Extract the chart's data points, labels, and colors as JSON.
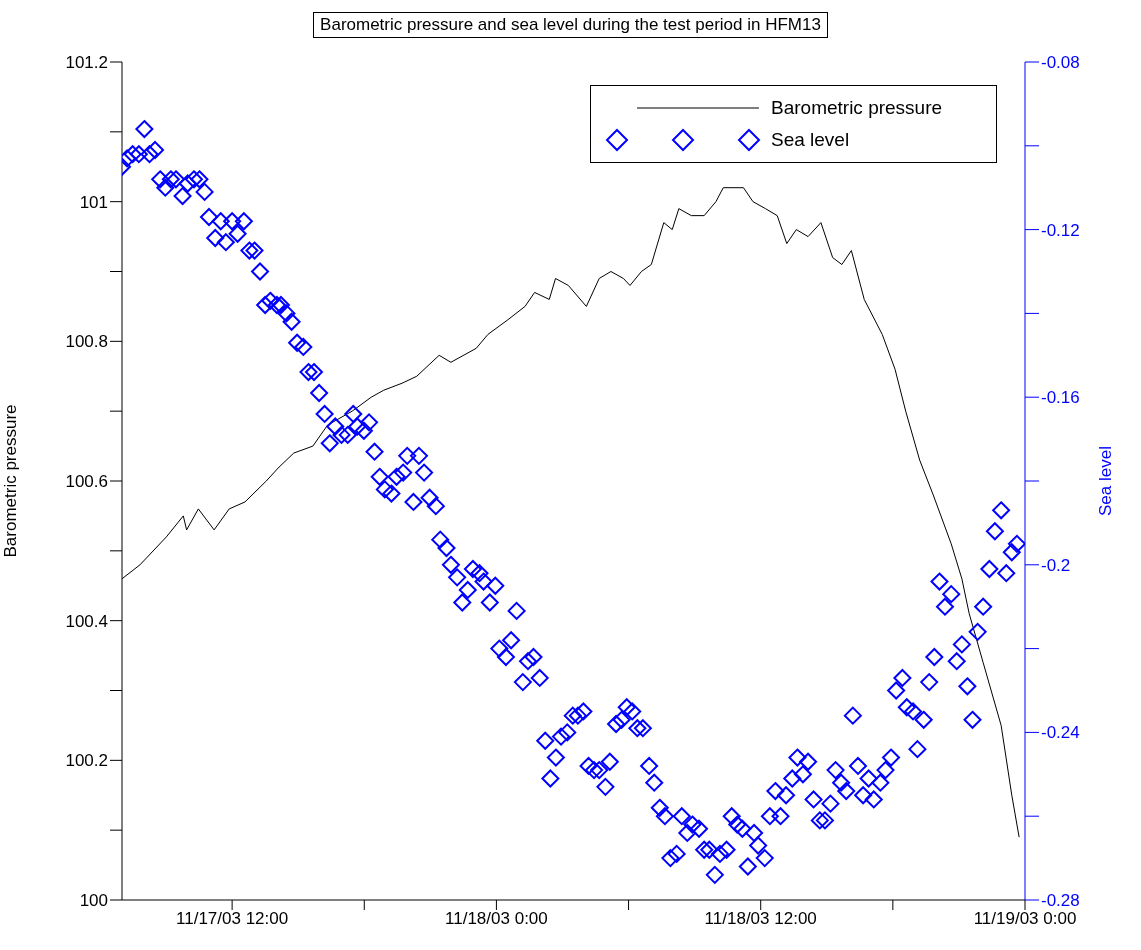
{
  "chart_data": {
    "type": "line",
    "title": "Barometric pressure and sea level during the test period in HFM13",
    "ylabel": "Barometric pressure",
    "y2label": "Sea level",
    "legend": "top right",
    "grid": false,
    "xlim": [
      "--11-17T07:00",
      "--11-19T00:00"
    ],
    "xticks": [
      {
        "value": "--11-17T12:00",
        "label": "11/17/03 12:00"
      },
      {
        "value": "--11-17T18:00",
        "label": null
      },
      {
        "value": "--11-18T00:00",
        "label": "11/18/03 0:00"
      },
      {
        "value": "--11-18T06:00",
        "label": null
      },
      {
        "value": "--11-18T12:00",
        "label": "11/18/03 12:00"
      },
      {
        "value": "--11-18T18:00",
        "label": null
      },
      {
        "value": "--11-19T00:00",
        "label": "11/19/03 0:00"
      }
    ],
    "ylim": [
      100,
      101.2
    ],
    "yticks": [
      100,
      {
        "value": 100.1,
        "label": null
      },
      100.2,
      {
        "value": 100.3,
        "label": null
      },
      100.4,
      {
        "value": 100.5,
        "label": null
      },
      100.6,
      {
        "value": 100.7,
        "label": null
      },
      100.8,
      {
        "value": 100.9,
        "label": null
      },
      101,
      {
        "value": 101.1,
        "label": null
      },
      101.2
    ],
    "y2lim": [
      -0.28,
      -0.08
    ],
    "y2ticks": [
      -0.28,
      {
        "value": -0.26,
        "label": null
      },
      -0.24,
      {
        "value": -0.22,
        "label": null
      },
      -0.2,
      {
        "value": -0.18,
        "label": null
      },
      -0.16,
      {
        "value": -0.14,
        "label": null
      },
      -0.12,
      {
        "value": -0.1,
        "label": null
      },
      -0.08
    ],
    "series": [
      {
        "name": "Barometric pressure",
        "type": "line",
        "color": "#000000",
        "marker": "none",
        "x": [
          "--11-17T07:00",
          "--11-17T07:49",
          "--11-17T09:01",
          "--11-17T09:47",
          "--11-17T09:56",
          "--11-17T10:28",
          "--11-17T11:11",
          "--11-17T11:52",
          "--11-17T12:35",
          "--11-17T13:33",
          "--11-17T14:08",
          "--11-17T14:48",
          "--11-17T15:40",
          "--11-17T16:20",
          "--11-17T17:27",
          "--11-17T18:19",
          "--11-17T18:53",
          "--11-17T19:43",
          "--11-17T20:23",
          "--11-17T21:24",
          "--11-17T21:56",
          "--11-17T23:05",
          "--11-17T23:37",
          "--11-18T00:29",
          "--11-18T01:18",
          "--11-18T01:44",
          "--11-18T02:24",
          "--11-18T02:41",
          "--11-18T03:16",
          "--11-18T04:05",
          "--11-18T04:40",
          "--11-18T05:12",
          "--11-18T05:46",
          "--11-18T06:04",
          "--11-18T06:35",
          "--11-18T07:02",
          "--11-18T07:36",
          "--11-18T07:59",
          "--11-18T08:17",
          "--11-18T08:51",
          "--11-18T09:26",
          "--11-18T09:58",
          "--11-18T10:18",
          "--11-18T10:50",
          "--11-18T11:13",
          "--11-18T11:39",
          "--11-18T12:13",
          "--11-18T12:45",
          "--11-18T13:11",
          "--11-18T13:37",
          "--11-18T14:09",
          "--11-18T14:44",
          "--11-18T15:16",
          "--11-18T15:41",
          "--11-18T16:07",
          "--11-18T16:42",
          "--11-18T17:31",
          "--11-18T18:06",
          "--11-18T18:35",
          "--11-18T19:13",
          "--11-18T19:50",
          "--11-18T20:39",
          "--11-18T21:08",
          "--11-18T21:28",
          "--11-18T22:06",
          "--11-18T22:55",
          "--11-18T23:24",
          "--11-18T23:44"
        ],
        "values": [
          100.46,
          100.48,
          100.52,
          100.55,
          100.53,
          100.56,
          100.53,
          100.56,
          100.57,
          100.6,
          100.62,
          100.64,
          100.65,
          100.68,
          100.7,
          100.72,
          100.73,
          100.74,
          100.75,
          100.78,
          100.77,
          100.79,
          100.81,
          100.83,
          100.85,
          100.87,
          100.86,
          100.89,
          100.88,
          100.85,
          100.89,
          100.9,
          100.89,
          100.88,
          100.9,
          100.91,
          100.97,
          100.96,
          100.99,
          100.98,
          100.98,
          101.0,
          101.02,
          101.02,
          101.02,
          101.0,
          100.99,
          100.98,
          100.94,
          100.96,
          100.95,
          100.97,
          100.92,
          100.91,
          100.93,
          100.86,
          100.81,
          100.76,
          100.7,
          100.63,
          100.58,
          100.51,
          100.46,
          100.41,
          100.34,
          100.25,
          100.15,
          100.09
        ]
      },
      {
        "name": "Sea level",
        "type": "scatter",
        "axis": "y2",
        "color": "#0000ff",
        "marker": "diamond",
        "x": [
          "--11-17T07:00",
          "--11-17T07:14",
          "--11-17T07:29",
          "--11-17T07:46",
          "--11-17T08:01",
          "--11-17T08:15",
          "--11-17T08:30",
          "--11-17T08:44",
          "--11-17T08:58",
          "--11-17T09:13",
          "--11-17T09:27",
          "--11-17T09:45",
          "--11-17T09:59",
          "--11-17T10:16",
          "--11-17T10:31",
          "--11-17T10:45",
          "--11-17T10:57",
          "--11-17T11:14",
          "--11-17T11:29",
          "--11-17T11:43",
          "--11-17T12:00",
          "--11-17T12:15",
          "--11-17T12:32",
          "--11-17T12:47",
          "--11-17T13:01",
          "--11-17T13:16",
          "--11-17T13:30",
          "--11-17T13:44",
          "--11-17T14:02",
          "--11-17T14:13",
          "--11-17T14:28",
          "--11-17T14:42",
          "--11-17T14:57",
          "--11-17T15:14",
          "--11-17T15:28",
          "--11-17T15:43",
          "--11-17T15:57",
          "--11-17T16:12",
          "--11-17T16:26",
          "--11-17T16:41",
          "--11-17T16:58",
          "--11-17T17:15",
          "--11-17T17:30",
          "--11-17T17:41",
          "--11-17T17:59",
          "--11-17T18:13",
          "--11-17T18:28",
          "--11-17T18:42",
          "--11-17T18:56",
          "--11-17T19:14",
          "--11-17T19:28",
          "--11-17T19:46",
          "--11-17T19:57",
          "--11-17T20:14",
          "--11-17T20:29",
          "--11-17T20:43",
          "--11-17T20:58",
          "--11-17T21:15",
          "--11-17T21:27",
          "--11-17T21:44",
          "--11-17T21:56",
          "--11-17T22:13",
          "--11-17T22:27",
          "--11-17T22:42",
          "--11-17T22:56",
          "--11-17T23:14",
          "--11-17T23:25",
          "--11-17T23:42",
          "--11-17T23:57",
          "--11-18T00:08",
          "--11-18T00:26",
          "--11-18T00:40",
          "--11-18T00:55",
          "--11-18T01:12",
          "--11-18T01:26",
          "--11-18T01:41",
          "--11-18T01:58",
          "--11-18T02:13",
          "--11-18T02:27",
          "--11-18T02:42",
          "--11-18T02:56",
          "--11-18T03:13",
          "--11-18T03:28",
          "--11-18T03:42",
          "--11-18T03:57",
          "--11-18T04:11",
          "--11-18T04:26",
          "--11-18T04:40",
          "--11-18T04:57",
          "--11-18T05:09",
          "--11-18T05:26",
          "--11-18T05:41",
          "--11-18T05:55",
          "--11-18T06:10",
          "--11-18T06:24",
          "--11-18T06:39",
          "--11-18T06:56",
          "--11-18T07:10",
          "--11-18T07:25",
          "--11-18T07:39",
          "--11-18T07:54",
          "--11-18T08:11",
          "--11-18T08:25",
          "--11-18T08:40",
          "--11-18T08:54",
          "--11-18T09:12",
          "--11-18T09:26",
          "--11-18T09:40",
          "--11-18T09:55",
          "--11-18T10:09",
          "--11-18T10:27",
          "--11-18T10:41",
          "--11-18T10:56",
          "--11-18T11:10",
          "--11-18T11:25",
          "--11-18T11:42",
          "--11-18T11:53",
          "--11-18T12:11",
          "--11-18T12:25",
          "--11-18T12:40",
          "--11-18T12:54",
          "--11-18T13:09",
          "--11-18T13:26",
          "--11-18T13:40",
          "--11-18T13:55",
          "--11-18T14:09",
          "--11-18T14:24",
          "--11-18T14:41",
          "--11-18T14:55",
          "--11-18T15:10",
          "--11-18T15:24",
          "--11-18T15:39",
          "--11-18T15:53",
          "--11-18T16:11",
          "--11-18T16:25",
          "--11-18T16:39",
          "--11-18T16:54",
          "--11-18T17:08",
          "--11-18T17:26",
          "--11-18T17:40",
          "--11-18T17:55",
          "--11-18T18:09",
          "--11-18T18:26",
          "--11-18T18:38",
          "--11-18T18:55",
          "--11-18T19:07",
          "--11-18T19:24",
          "--11-18T19:39",
          "--11-18T19:53",
          "--11-18T20:07",
          "--11-18T20:22",
          "--11-18T20:39",
          "--11-18T20:54",
          "--11-18T21:08",
          "--11-18T21:23",
          "--11-18T21:37",
          "--11-18T21:51",
          "--11-18T22:06",
          "--11-18T22:23",
          "--11-18T22:38",
          "--11-18T22:55",
          "--11-18T23:09",
          "--11-18T23:24",
          "--11-18T23:38"
        ],
        "values": [
          -0.105,
          -0.103,
          -0.102,
          -0.102,
          -0.096,
          -0.102,
          -0.101,
          -0.108,
          -0.11,
          -0.108,
          -0.108,
          -0.112,
          -0.109,
          -0.108,
          -0.108,
          -0.111,
          -0.117,
          -0.122,
          -0.118,
          -0.123,
          -0.118,
          -0.121,
          -0.118,
          -0.125,
          -0.125,
          -0.13,
          -0.138,
          -0.137,
          -0.138,
          -0.138,
          -0.14,
          -0.142,
          -0.147,
          -0.148,
          -0.154,
          -0.154,
          -0.159,
          -0.164,
          -0.171,
          -0.167,
          -0.169,
          -0.169,
          -0.164,
          -0.167,
          -0.168,
          -0.166,
          -0.173,
          -0.179,
          -0.182,
          -0.183,
          -0.179,
          -0.178,
          -0.174,
          -0.185,
          -0.174,
          -0.178,
          -0.184,
          -0.186,
          -0.194,
          -0.196,
          -0.2,
          -0.203,
          -0.209,
          -0.206,
          -0.201,
          -0.202,
          -0.204,
          -0.209,
          -0.205,
          -0.22,
          -0.222,
          -0.218,
          -0.211,
          -0.228,
          -0.223,
          -0.222,
          -0.227,
          -0.242,
          -0.251,
          -0.246,
          -0.241,
          -0.24,
          -0.236,
          -0.236,
          -0.235,
          -0.248,
          -0.249,
          -0.249,
          -0.253,
          -0.247,
          -0.238,
          -0.237,
          -0.234,
          -0.235,
          -0.239,
          -0.239,
          -0.248,
          -0.252,
          -0.258,
          -0.26,
          -0.27,
          -0.269,
          -0.26,
          -0.264,
          -0.262,
          -0.263,
          -0.268,
          -0.268,
          -0.274,
          -0.269,
          -0.268,
          -0.26,
          -0.262,
          -0.263,
          -0.272,
          -0.264,
          -0.267,
          -0.27,
          -0.26,
          -0.254,
          -0.26,
          -0.255,
          -0.251,
          -0.246,
          -0.25,
          -0.247,
          -0.256,
          -0.261,
          -0.261,
          -0.257,
          -0.249,
          -0.252,
          -0.254,
          -0.236,
          -0.248,
          -0.255,
          -0.251,
          -0.256,
          -0.252,
          -0.249,
          -0.246,
          -0.23,
          -0.227,
          -0.234,
          -0.235,
          -0.244,
          -0.237,
          -0.228,
          -0.222,
          -0.204,
          -0.21,
          -0.207,
          -0.223,
          -0.219,
          -0.229,
          -0.237,
          -0.216,
          -0.21,
          -0.201,
          -0.192,
          -0.187,
          -0.202,
          -0.197,
          -0.195
        ]
      }
    ]
  }
}
